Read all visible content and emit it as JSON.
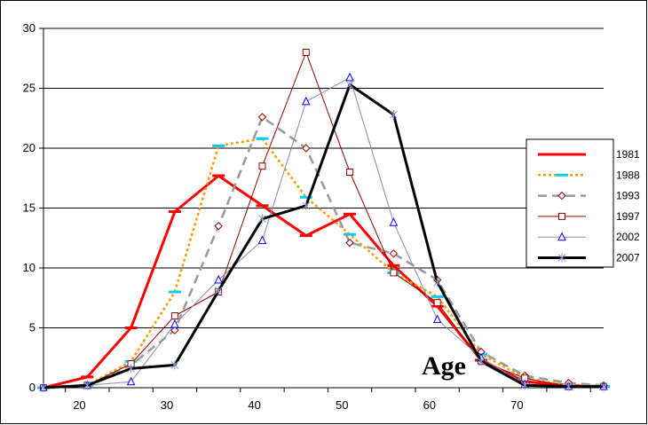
{
  "chart_data": {
    "type": "line",
    "title": "",
    "xlabel": "Age",
    "ylabel": "",
    "xlim": [
      16,
      80
    ],
    "ylim": [
      0,
      30
    ],
    "x_ticks": [
      "20",
      "30",
      "40",
      "50",
      "60",
      "70"
    ],
    "y_ticks": [
      "0",
      "5",
      "10",
      "15",
      "20",
      "25",
      "30"
    ],
    "grid": "horizontal",
    "legend_position": "right",
    "x": [
      16,
      21,
      26,
      31,
      36,
      41,
      46,
      51,
      56,
      61,
      66,
      71,
      76,
      80
    ],
    "series": [
      {
        "name": "1981",
        "color": "#ff0000",
        "style": "solid",
        "width": 3,
        "marker": "dash",
        "values": [
          0,
          0.9,
          5,
          14.7,
          17.7,
          15.2,
          12.7,
          14.5,
          10.2,
          6.8,
          2.3,
          0.5,
          0.2,
          0.1
        ]
      },
      {
        "name": "1988",
        "color": "#ff9900",
        "marker_color": "#00ccff",
        "style": "dotted",
        "width": 2.5,
        "marker": "dash",
        "values": [
          0,
          0.2,
          2.2,
          8,
          20.2,
          20.8,
          15.9,
          12.8,
          9.6,
          7.6,
          2.8,
          0.8,
          0.2,
          0.1
        ]
      },
      {
        "name": "1993",
        "color": "#999999",
        "marker_color": "#990000",
        "style": "dashed",
        "width": 2.5,
        "marker": "diamond",
        "values": [
          0,
          0.2,
          1.9,
          4.8,
          13.5,
          22.6,
          20,
          12.1,
          11.2,
          9,
          3,
          1,
          0.4,
          0.2
        ]
      },
      {
        "name": "1997",
        "color": "#990000",
        "style": "solid",
        "width": 1,
        "marker": "square",
        "values": [
          0,
          0.2,
          2,
          6,
          8,
          18.5,
          28,
          18,
          9.6,
          7.1,
          2.2,
          0.8,
          0.1,
          0.1
        ]
      },
      {
        "name": "2002",
        "color": "#8888bb",
        "marker_color": "#0000ff",
        "style": "solid",
        "width": 1,
        "marker": "triangle",
        "values": [
          0,
          0.2,
          0.5,
          5.3,
          9,
          12.3,
          23.9,
          25.9,
          13.8,
          5.7,
          2.5,
          0.3,
          0.1,
          0.1
        ]
      },
      {
        "name": "2007",
        "color": "#000000",
        "marker_color": "#8899cc",
        "style": "solid",
        "width": 3,
        "marker": "star",
        "values": [
          0,
          0.2,
          1.6,
          1.9,
          8.1,
          14.1,
          15.2,
          25.3,
          22.8,
          8.8,
          2.2,
          0.2,
          0.1,
          0.1
        ]
      }
    ]
  }
}
